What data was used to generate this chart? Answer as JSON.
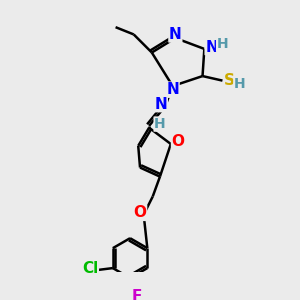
{
  "bg_color": "#ebebeb",
  "atom_colors": {
    "N": "#0000FF",
    "O": "#FF0000",
    "S": "#CCAA00",
    "Cl": "#00BB00",
    "F": "#CC00CC",
    "C": "#000000",
    "H": "#5599AA"
  },
  "bond_color": "#000000",
  "bond_width": 1.8,
  "font_size": 10
}
